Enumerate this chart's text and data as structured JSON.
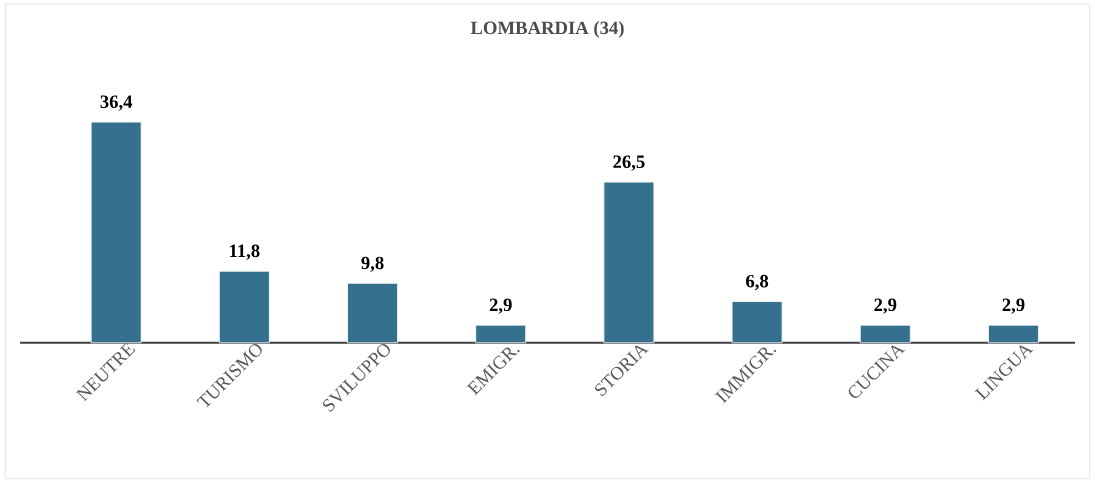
{
  "chart_data": {
    "type": "bar",
    "title": "LOMBARDIA (34)",
    "categories": [
      "NEUTRE",
      "TURISMO",
      "SVILUPPO",
      "EMIGR.",
      "STORIA",
      "IMMIGR.",
      "CUCINA",
      "LINGUA"
    ],
    "values": [
      36.4,
      11.8,
      9.8,
      2.9,
      26.5,
      6.8,
      2.9,
      2.9
    ],
    "value_labels": [
      "36,4",
      "11,8",
      "9,8",
      "2,9",
      "26,5",
      "6,8",
      "2,9",
      "2,9"
    ],
    "color": "#35718f"
  }
}
